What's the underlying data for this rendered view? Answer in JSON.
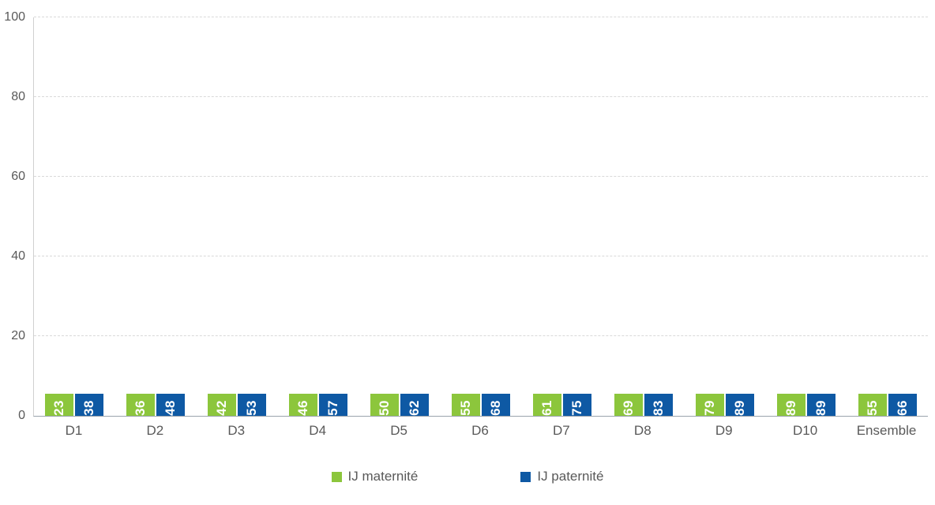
{
  "chart_data": {
    "type": "bar",
    "categories": [
      "D1",
      "D2",
      "D3",
      "D4",
      "D5",
      "D6",
      "D7",
      "D8",
      "D9",
      "D10",
      "Ensemble"
    ],
    "series": [
      {
        "name": "IJ maternité",
        "color": "#8cc63c",
        "values": [
          23,
          36,
          42,
          46,
          50,
          55,
          61,
          69,
          79,
          89,
          55
        ]
      },
      {
        "name": "IJ paternité",
        "color": "#0e59a4",
        "values": [
          38,
          48,
          53,
          57,
          62,
          68,
          75,
          83,
          89,
          89,
          66
        ]
      }
    ],
    "title": "",
    "xlabel": "",
    "ylabel": "",
    "ylim": [
      0,
      100
    ],
    "yticks": [
      0,
      20,
      40,
      60,
      80,
      100
    ],
    "grid": true,
    "gridline_style": "dashed",
    "legend_position": "bottom",
    "value_labels": "rotated-white-inside-top"
  },
  "colors": {
    "axis_text": "#595959",
    "gridline": "#d9d9d9",
    "maternite_green": "#8cc63c",
    "paternite_blue": "#0e59a4"
  }
}
